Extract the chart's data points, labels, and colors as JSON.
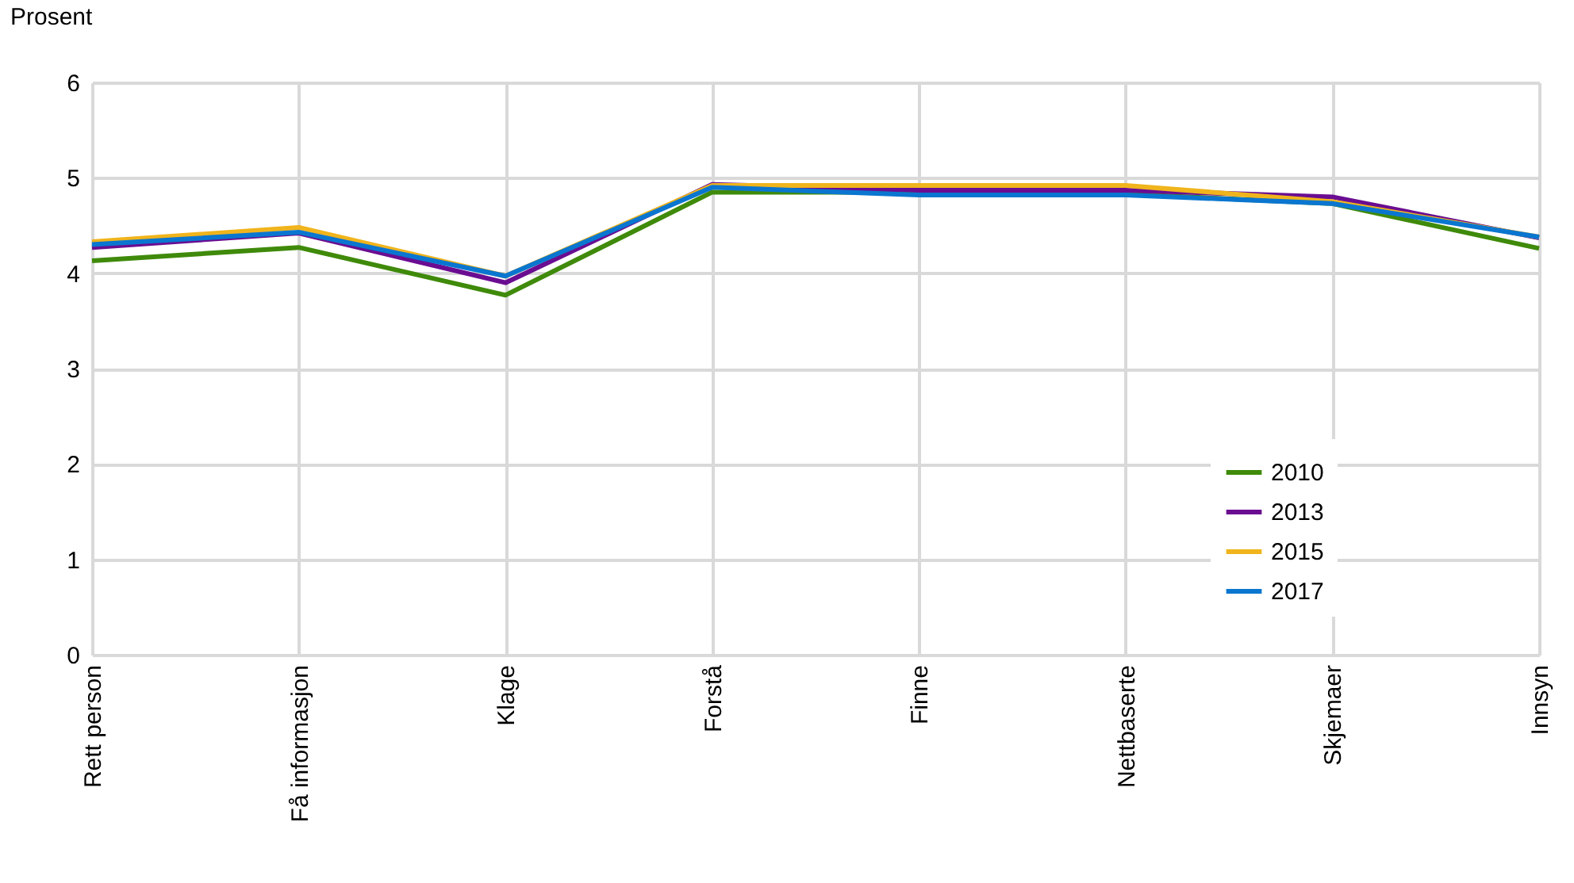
{
  "chart_data": {
    "type": "line",
    "ylabel": "Prosent",
    "categories": [
      "Rett person",
      "Få informasjon",
      "Klage",
      "Forstå",
      "Finne",
      "Nettbaserte",
      "Skjemaer",
      "Innsyn"
    ],
    "series": [
      {
        "name": "2010",
        "color": "#3f8a0a",
        "values": [
          4.13,
          4.27,
          3.77,
          4.85,
          4.85,
          4.83,
          4.73,
          4.26
        ]
      },
      {
        "name": "2013",
        "color": "#6a0d91",
        "values": [
          4.27,
          4.42,
          3.9,
          4.93,
          4.87,
          4.87,
          4.8,
          4.37
        ]
      },
      {
        "name": "2015",
        "color": "#f0b41c",
        "values": [
          4.33,
          4.48,
          3.97,
          4.92,
          4.92,
          4.92,
          4.75,
          4.38
        ]
      },
      {
        "name": "2017",
        "color": "#0a76d0",
        "values": [
          4.3,
          4.43,
          3.97,
          4.9,
          4.82,
          4.82,
          4.73,
          4.38
        ]
      }
    ],
    "ylim": [
      0,
      6
    ],
    "yticks": [
      0,
      1,
      2,
      3,
      4,
      5,
      6
    ],
    "grid": true,
    "legend": "bottom right",
    "marker": "none",
    "line_style": "solid"
  }
}
